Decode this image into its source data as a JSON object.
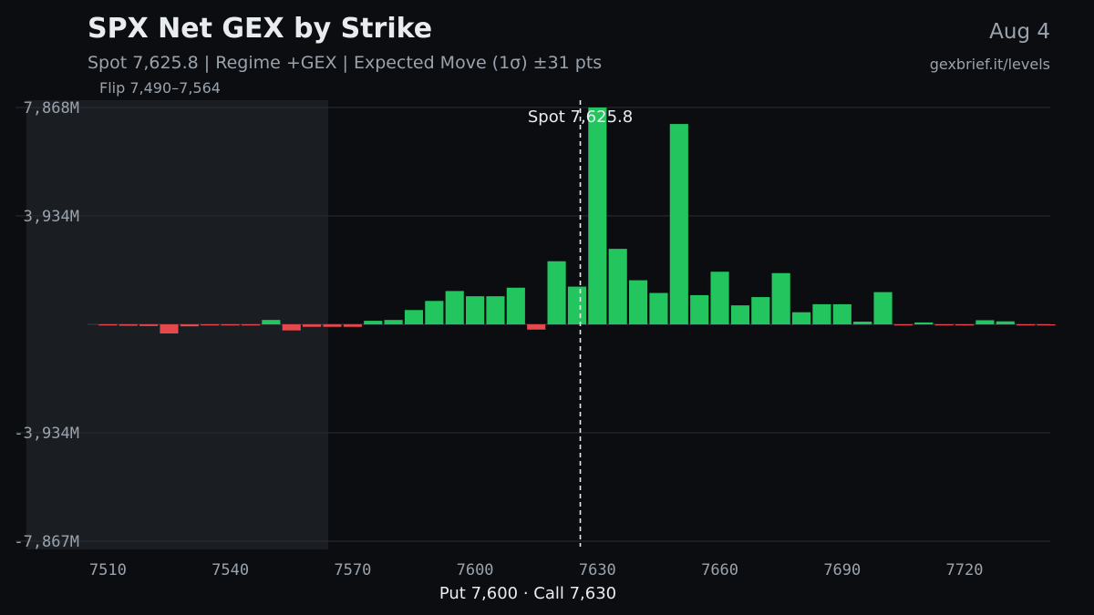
{
  "header": {
    "title": "SPX Net GEX by Strike",
    "subtitle": "Spot 7,625.8 | Regime +GEX | Expected Move (1σ) ±31 pts",
    "date": "Aug 4",
    "site": "gexbrief.it/levels"
  },
  "colors": {
    "background": "#0b0d10",
    "positive": "#22c55e",
    "negative": "#e5484d",
    "flip_zone": "#1a1e22",
    "grid": "#2a2f36",
    "text_muted": "#9aa3ad"
  },
  "chart_data": {
    "type": "bar",
    "title": "SPX Net GEX by Strike",
    "xlabel": "Put 7,600 · Call 7,630",
    "ylabel": "",
    "x_ticks": [
      7510,
      7540,
      7570,
      7600,
      7630,
      7660,
      7690,
      7720
    ],
    "y_ticks": [
      {
        "value": 7868,
        "label": "7,868M"
      },
      {
        "value": 3934,
        "label": "3,934M"
      },
      {
        "value": -3934,
        "label": "-3,934M"
      },
      {
        "value": -7867,
        "label": "-7,867M"
      }
    ],
    "xlim": [
      7505,
      7741
    ],
    "ylim": [
      -7867,
      7868
    ],
    "strike_step": 5,
    "grid": true,
    "spot": {
      "value": 7625.8,
      "label": "Spot 7,625.8"
    },
    "flip_zone": {
      "from": 7490,
      "to": 7564,
      "label": "Flip 7,490–7,564"
    },
    "strikes": [
      7510,
      7515,
      7520,
      7525,
      7530,
      7535,
      7540,
      7545,
      7550,
      7555,
      7560,
      7565,
      7570,
      7575,
      7580,
      7585,
      7590,
      7595,
      7600,
      7605,
      7610,
      7615,
      7620,
      7625,
      7630,
      7635,
      7640,
      7645,
      7650,
      7655,
      7660,
      7665,
      7670,
      7675,
      7680,
      7685,
      7690,
      7695,
      7700,
      7705,
      7710,
      7715,
      7720,
      7725,
      7730,
      7735,
      7740
    ],
    "values": [
      -30,
      -50,
      -60,
      -330,
      -70,
      -40,
      -40,
      -20,
      160,
      -220,
      -90,
      -90,
      -90,
      130,
      160,
      520,
      850,
      1210,
      1020,
      1020,
      1330,
      -190,
      2290,
      1370,
      7868,
      2740,
      1600,
      1140,
      7270,
      1060,
      1910,
      690,
      990,
      1860,
      440,
      730,
      730,
      100,
      1170,
      -30,
      70,
      -20,
      -30,
      150,
      110,
      -30,
      -40
    ]
  }
}
